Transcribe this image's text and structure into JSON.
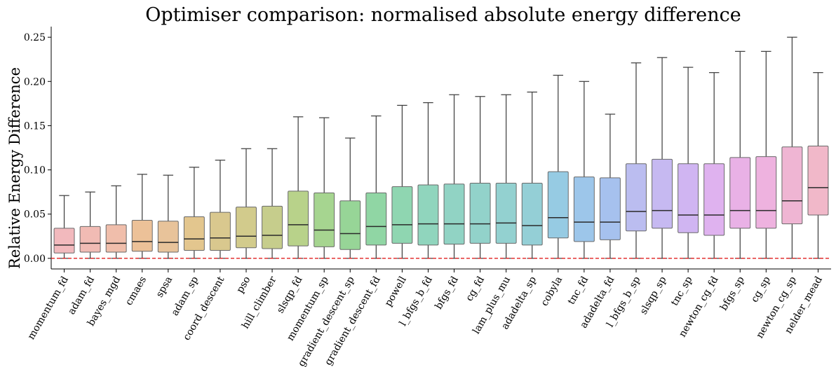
{
  "chart_data": {
    "type": "box",
    "title": "Optimiser comparison: normalised absolute energy difference",
    "xlabel": "",
    "ylabel": "Relative Energy Difference",
    "ylim": [
      -0.012,
      0.262
    ],
    "yticks": [
      0.0,
      0.05,
      0.1,
      0.15,
      0.2,
      0.25
    ],
    "ytick_labels": [
      "0.00",
      "0.05",
      "0.10",
      "0.15",
      "0.20",
      "0.25"
    ],
    "reference_line": {
      "y": 0.0,
      "color": "#e02020",
      "style": "dashed"
    },
    "grid": false,
    "categories": [
      "momentum_fd",
      "adam_fd",
      "bayes_mgd",
      "cmaes",
      "spsa",
      "adam_sp",
      "coord_descent",
      "pso",
      "hill_climber",
      "slsqp_fd",
      "momentum_sp",
      "gradient_descent_sp",
      "gradient_descent_fd",
      "powell",
      "l_bfgs_b_fd",
      "bfgs_fd",
      "cg_fd",
      "lam_plus_mu",
      "adadelta_sp",
      "cobyla",
      "tnc_fd",
      "adadelta_fd",
      "l_bfgs_b_sp",
      "slsqp_sp",
      "tnc_sp",
      "newton_cg_fd",
      "bfgs_sp",
      "cg_sp",
      "newton_cg_sp",
      "nelder_mead"
    ],
    "boxes": [
      {
        "name": "momentum_fd",
        "whislo": 0.0,
        "q1": 0.006,
        "median": 0.015,
        "q3": 0.034,
        "whishi": 0.071,
        "color": "#f2b9bd"
      },
      {
        "name": "adam_fd",
        "whislo": 0.0,
        "q1": 0.007,
        "median": 0.017,
        "q3": 0.036,
        "whishi": 0.075,
        "color": "#f1bbb4"
      },
      {
        "name": "bayes_mgd",
        "whislo": 0.0,
        "q1": 0.007,
        "median": 0.017,
        "q3": 0.038,
        "whishi": 0.082,
        "color": "#f0beab"
      },
      {
        "name": "cmaes",
        "whislo": 0.0,
        "q1": 0.008,
        "median": 0.019,
        "q3": 0.043,
        "whishi": 0.095,
        "color": "#ecc198"
      },
      {
        "name": "spsa",
        "whislo": 0.0,
        "q1": 0.007,
        "median": 0.018,
        "q3": 0.042,
        "whishi": 0.094,
        "color": "#e8c39a"
      },
      {
        "name": "adam_sp",
        "whislo": 0.0,
        "q1": 0.009,
        "median": 0.022,
        "q3": 0.047,
        "whishi": 0.103,
        "color": "#e3c68e"
      },
      {
        "name": "coord_descent",
        "whislo": 0.0,
        "q1": 0.009,
        "median": 0.023,
        "q3": 0.052,
        "whishi": 0.111,
        "color": "#d9c88e"
      },
      {
        "name": "pso",
        "whislo": 0.0,
        "q1": 0.012,
        "median": 0.025,
        "q3": 0.058,
        "whishi": 0.124,
        "color": "#d2cb8c"
      },
      {
        "name": "hill_climber",
        "whislo": 0.0,
        "q1": 0.011,
        "median": 0.026,
        "q3": 0.059,
        "whishi": 0.124,
        "color": "#c6cd8c"
      },
      {
        "name": "slsqp_fd",
        "whislo": 0.0,
        "q1": 0.014,
        "median": 0.038,
        "q3": 0.076,
        "whishi": 0.16,
        "color": "#b8d28a"
      },
      {
        "name": "momentum_sp",
        "whislo": 0.0,
        "q1": 0.013,
        "median": 0.032,
        "q3": 0.074,
        "whishi": 0.159,
        "color": "#a6d590"
      },
      {
        "name": "gradient_descent_sp",
        "whislo": 0.0,
        "q1": 0.01,
        "median": 0.028,
        "q3": 0.065,
        "whishi": 0.136,
        "color": "#97d597"
      },
      {
        "name": "gradient_descent_fd",
        "whislo": 0.0,
        "q1": 0.015,
        "median": 0.036,
        "q3": 0.074,
        "whishi": 0.161,
        "color": "#90d6a4"
      },
      {
        "name": "powell",
        "whislo": 0.0,
        "q1": 0.017,
        "median": 0.038,
        "q3": 0.081,
        "whishi": 0.173,
        "color": "#8fd6b1"
      },
      {
        "name": "l_bfgs_b_fd",
        "whislo": 0.0,
        "q1": 0.015,
        "median": 0.039,
        "q3": 0.083,
        "whishi": 0.176,
        "color": "#90d5bd"
      },
      {
        "name": "bfgs_fd",
        "whislo": 0.0,
        "q1": 0.016,
        "median": 0.039,
        "q3": 0.084,
        "whishi": 0.185,
        "color": "#91d3c4"
      },
      {
        "name": "cg_fd",
        "whislo": 0.0,
        "q1": 0.017,
        "median": 0.039,
        "q3": 0.085,
        "whishi": 0.183,
        "color": "#92d2ca"
      },
      {
        "name": "lam_plus_mu",
        "whislo": 0.0,
        "q1": 0.017,
        "median": 0.04,
        "q3": 0.085,
        "whishi": 0.185,
        "color": "#93d1d0"
      },
      {
        "name": "adadelta_sp",
        "whislo": 0.0,
        "q1": 0.015,
        "median": 0.037,
        "q3": 0.085,
        "whishi": 0.188,
        "color": "#94cfd6"
      },
      {
        "name": "cobyla",
        "whislo": 0.0,
        "q1": 0.023,
        "median": 0.046,
        "q3": 0.098,
        "whishi": 0.207,
        "color": "#96cbe3"
      },
      {
        "name": "tnc_fd",
        "whislo": 0.0,
        "q1": 0.019,
        "median": 0.041,
        "q3": 0.092,
        "whishi": 0.2,
        "color": "#9dc6ea"
      },
      {
        "name": "adadelta_fd",
        "whislo": 0.0,
        "q1": 0.021,
        "median": 0.041,
        "q3": 0.091,
        "whishi": 0.163,
        "color": "#a6c1ee"
      },
      {
        "name": "l_bfgs_b_sp",
        "whislo": 0.0,
        "q1": 0.031,
        "median": 0.053,
        "q3": 0.107,
        "whishi": 0.221,
        "color": "#bbbdf0"
      },
      {
        "name": "slsqp_sp",
        "whislo": 0.0,
        "q1": 0.034,
        "median": 0.054,
        "q3": 0.112,
        "whishi": 0.227,
        "color": "#c6b9f1"
      },
      {
        "name": "tnc_sp",
        "whislo": 0.0,
        "q1": 0.029,
        "median": 0.049,
        "q3": 0.107,
        "whishi": 0.216,
        "color": "#d0b5f2"
      },
      {
        "name": "newton_cg_fd",
        "whislo": 0.0,
        "q1": 0.026,
        "median": 0.049,
        "q3": 0.107,
        "whishi": 0.21,
        "color": "#dfb2ef"
      },
      {
        "name": "bfgs_sp",
        "whislo": 0.0,
        "q1": 0.034,
        "median": 0.054,
        "q3": 0.114,
        "whishi": 0.234,
        "color": "#e9b1e6"
      },
      {
        "name": "cg_sp",
        "whislo": 0.0,
        "q1": 0.034,
        "median": 0.054,
        "q3": 0.115,
        "whishi": 0.234,
        "color": "#eeb2df"
      },
      {
        "name": "newton_cg_sp",
        "whislo": 0.0,
        "q1": 0.039,
        "median": 0.065,
        "q3": 0.126,
        "whishi": 0.25,
        "color": "#efb5d3"
      },
      {
        "name": "nelder_mead",
        "whislo": 0.0,
        "q1": 0.049,
        "median": 0.08,
        "q3": 0.127,
        "whishi": 0.21,
        "color": "#f1b8c9"
      }
    ]
  }
}
